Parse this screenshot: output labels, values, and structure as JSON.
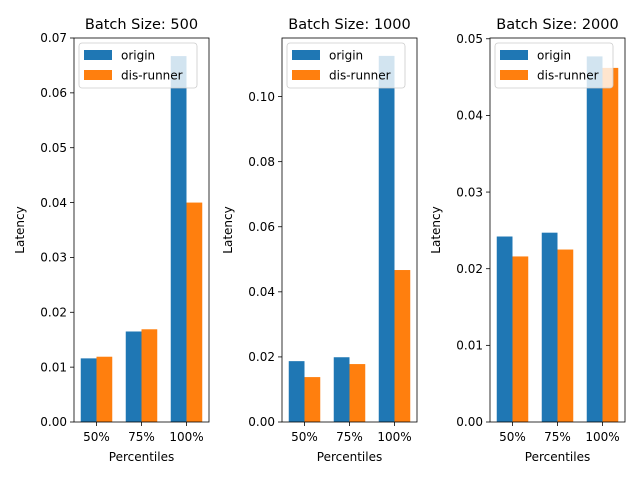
{
  "colors": {
    "origin": "#1f77b4",
    "dis-runner": "#ff7f0e"
  },
  "chart_data": [
    {
      "type": "bar",
      "title": "Batch Size: 500",
      "xlabel": "Percentiles",
      "ylabel": "Latency",
      "categories": [
        "50%",
        "75%",
        "100%"
      ],
      "series": [
        {
          "name": "origin",
          "values": [
            0.0116,
            0.0165,
            0.0667
          ]
        },
        {
          "name": "dis-runner",
          "values": [
            0.0119,
            0.0169,
            0.04
          ]
        }
      ],
      "ylim": [
        0,
        0.07
      ],
      "yticks": [
        0,
        0.01,
        0.02,
        0.03,
        0.04,
        0.05,
        0.06,
        0.07
      ],
      "ytick_labels": [
        "0.00",
        "0.01",
        "0.02",
        "0.03",
        "0.04",
        "0.05",
        "0.06",
        "0.07"
      ],
      "legend": "upper-left",
      "grid": false
    },
    {
      "type": "bar",
      "title": "Batch Size: 1000",
      "xlabel": "Percentiles",
      "ylabel": "Latency",
      "categories": [
        "50%",
        "75%",
        "100%"
      ],
      "series": [
        {
          "name": "origin",
          "values": [
            0.0187,
            0.0199,
            0.1125
          ]
        },
        {
          "name": "dis-runner",
          "values": [
            0.0138,
            0.0178,
            0.0467
          ]
        }
      ],
      "ylim": [
        0,
        0.118
      ],
      "yticks": [
        0,
        0.02,
        0.04,
        0.06,
        0.08,
        0.1
      ],
      "ytick_labels": [
        "0.00",
        "0.02",
        "0.04",
        "0.06",
        "0.08",
        "0.10"
      ],
      "legend": "upper-left",
      "grid": false
    },
    {
      "type": "bar",
      "title": "Batch Size: 2000",
      "xlabel": "Percentiles",
      "ylabel": "Latency",
      "categories": [
        "50%",
        "75%",
        "100%"
      ],
      "series": [
        {
          "name": "origin",
          "values": [
            0.0242,
            0.0247,
            0.0477
          ]
        },
        {
          "name": "dis-runner",
          "values": [
            0.0216,
            0.0225,
            0.0462
          ]
        }
      ],
      "ylim": [
        0,
        0.0501
      ],
      "yticks": [
        0,
        0.01,
        0.02,
        0.03,
        0.04,
        0.05
      ],
      "ytick_labels": [
        "0.00",
        "0.01",
        "0.02",
        "0.03",
        "0.04",
        "0.05"
      ],
      "legend": "upper-left",
      "grid": false
    }
  ]
}
